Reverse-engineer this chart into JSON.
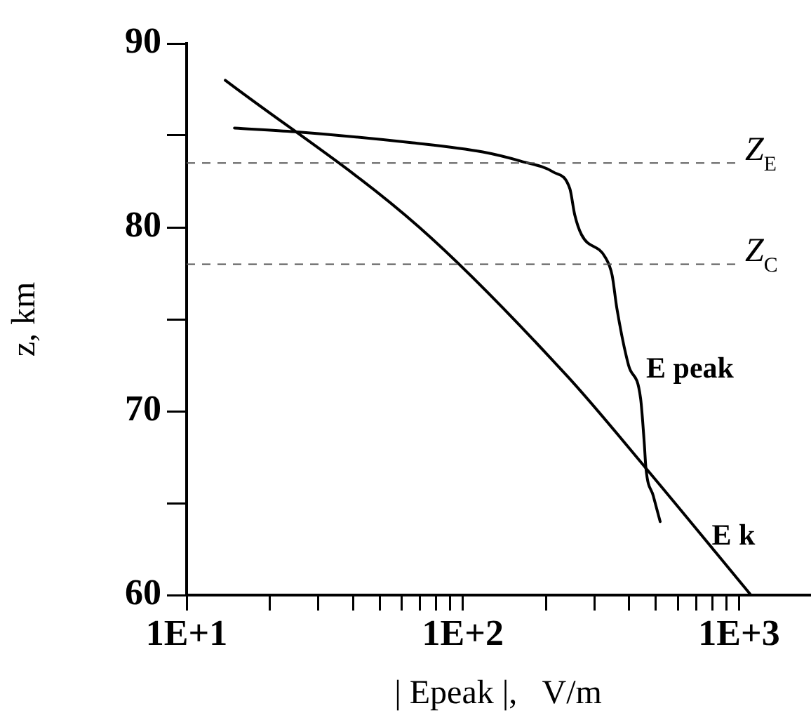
{
  "chart_data": {
    "type": "line",
    "xlabel": "| Epeak |,   V/m",
    "ylabel": "z, km",
    "log": "x",
    "xlim": [
      10,
      1800
    ],
    "ylim": [
      60,
      90
    ],
    "xticks": [
      {
        "value": 10,
        "label": "1E+1"
      },
      {
        "value": 20,
        "label": null
      },
      {
        "value": 30,
        "label": null
      },
      {
        "value": 40,
        "label": null
      },
      {
        "value": 50,
        "label": null
      },
      {
        "value": 60,
        "label": null
      },
      {
        "value": 70,
        "label": null
      },
      {
        "value": 80,
        "label": null
      },
      {
        "value": 90,
        "label": null
      },
      {
        "value": 100,
        "label": "1E+2"
      },
      {
        "value": 200,
        "label": null
      },
      {
        "value": 300,
        "label": null
      },
      {
        "value": 400,
        "label": null
      },
      {
        "value": 500,
        "label": null
      },
      {
        "value": 600,
        "label": null
      },
      {
        "value": 700,
        "label": null
      },
      {
        "value": 800,
        "label": null
      },
      {
        "value": 900,
        "label": null
      },
      {
        "value": 1000,
        "label": "1E+3"
      }
    ],
    "yticks": [
      60,
      {
        "value": 65,
        "label": null
      },
      70,
      {
        "value": 75,
        "label": null
      },
      80,
      {
        "value": 85,
        "label": null
      },
      90
    ],
    "grid": false,
    "legend": false,
    "marker": "none",
    "line_style": "solid",
    "series": [
      {
        "name": "E peak",
        "color": "#000000",
        "x": [
          14.9,
          24.7,
          65.9,
          118,
          162,
          213,
          244,
          254,
          269,
          327,
          347,
          361,
          398,
          440,
          454,
          460,
          489,
          518
        ],
        "values": [
          85.4,
          85.2,
          84.6,
          84.1,
          83.6,
          83.0,
          82.1,
          80.7,
          79.6,
          78.4,
          77.4,
          75.6,
          72.5,
          70.7,
          68.2,
          66.9,
          65.4,
          64.0
        ]
      },
      {
        "name": "E k",
        "color": "#000000",
        "x": [
          13.8,
          69.6,
          239,
          460,
          1104
        ],
        "values": [
          88.0,
          80,
          71.9,
          66.9,
          60
        ]
      }
    ],
    "ref_lines": [
      {
        "axis": "y",
        "value": 83.5,
        "label": "Z$_{E}$",
        "color": "#555555",
        "line_style": "dashed"
      },
      {
        "axis": "y",
        "value": 78.0,
        "label": "Z$_{C}$",
        "color": "#555555",
        "line_style": "dashed"
      }
    ]
  }
}
